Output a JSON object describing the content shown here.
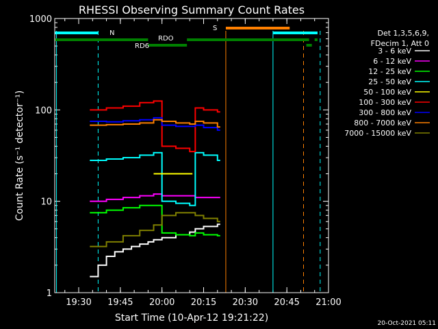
{
  "chart_data": {
    "type": "line",
    "title": "RHESSI Observing Summary Count Rates",
    "xlabel": "Start Time (10-Apr-12 19:21:22)",
    "ylabel": "Count Rate (s⁻¹ detector⁻¹)",
    "yscale": "log",
    "ylim": [
      1,
      1000
    ],
    "xlim": [
      "19:21:22",
      "21:00:00"
    ],
    "x_ticks": [
      "19:30",
      "19:45",
      "20:00",
      "20:15",
      "20:30",
      "20:45",
      "21:00"
    ],
    "y_ticks": [
      "1",
      "10",
      "100",
      "1000"
    ],
    "grid": false,
    "legend_position": "right",
    "legend_header": [
      "Det 1,3,5,6,9,",
      "FDecim 1, Att 0"
    ],
    "series": [
      {
        "name": "3 - 6 keV",
        "color": "#ffffff",
        "x": [
          "19:34",
          "19:37",
          "19:40",
          "19:43",
          "19:46",
          "19:49",
          "19:52",
          "19:55",
          "19:57",
          "20:00",
          "20:05",
          "20:10",
          "20:12",
          "20:15",
          "20:20"
        ],
        "values": [
          1.5,
          2,
          2.5,
          2.8,
          3,
          3.2,
          3.4,
          3.6,
          3.8,
          4.0,
          4.3,
          4.6,
          5.0,
          5.3,
          5.6
        ]
      },
      {
        "name": "6 - 12 keV",
        "color": "#ff00ff",
        "x": [
          "19:34",
          "19:40",
          "19:46",
          "19:52",
          "19:57",
          "20:00",
          "20:05",
          "20:10",
          "20:12",
          "20:15",
          "20:20"
        ],
        "values": [
          10,
          10.5,
          11,
          11.5,
          12,
          11.5,
          11.5,
          11.5,
          11,
          11,
          11
        ]
      },
      {
        "name": "12 - 25 keV",
        "color": "#00ff00",
        "x": [
          "19:34",
          "19:40",
          "19:46",
          "19:52",
          "19:57",
          "20:00",
          "20:05",
          "20:10",
          "20:12",
          "20:15",
          "20:20"
        ],
        "values": [
          7.5,
          8,
          8.5,
          9,
          9,
          4.5,
          4.3,
          4.2,
          4.5,
          4.3,
          4.2
        ]
      },
      {
        "name": "25 - 50 keV",
        "color": "#00ffff",
        "x": [
          "19:34",
          "19:40",
          "19:46",
          "19:52",
          "19:57",
          "20:00",
          "20:05",
          "20:10",
          "20:12",
          "20:15",
          "20:20"
        ],
        "values": [
          28,
          29,
          30,
          32,
          34,
          10,
          9.5,
          9,
          34,
          32,
          28
        ]
      },
      {
        "name": "50 - 100 keV",
        "color": "#ffff00",
        "x": [
          "19:57",
          "20:00",
          "20:05",
          "20:10"
        ],
        "values": [
          20,
          20,
          20,
          20
        ]
      },
      {
        "name": "100 - 300 keV",
        "color": "#ff0000",
        "x": [
          "19:34",
          "19:40",
          "19:46",
          "19:52",
          "19:57",
          "20:00",
          "20:05",
          "20:10",
          "20:12",
          "20:15",
          "20:20"
        ],
        "values": [
          100,
          105,
          110,
          120,
          125,
          40,
          38,
          35,
          105,
          100,
          95
        ]
      },
      {
        "name": "300 - 800 keV",
        "color": "#0000ff",
        "x": [
          "19:34",
          "19:40",
          "19:46",
          "19:52",
          "19:57",
          "20:00",
          "20:05",
          "20:10",
          "20:12",
          "20:15",
          "20:20"
        ],
        "values": [
          75,
          74,
          76,
          78,
          82,
          68,
          66,
          66,
          68,
          64,
          60
        ]
      },
      {
        "name": "800 - 7000 keV",
        "color": "#ff8000",
        "x": [
          "19:34",
          "19:40",
          "19:46",
          "19:52",
          "19:57",
          "20:00",
          "20:05",
          "20:10",
          "20:12",
          "20:15",
          "20:20"
        ],
        "values": [
          68,
          69,
          70,
          72,
          78,
          75,
          72,
          70,
          75,
          72,
          65
        ]
      },
      {
        "name": "7000 - 15000 keV",
        "color": "#808000",
        "x": [
          "19:34",
          "19:40",
          "19:46",
          "19:52",
          "19:57",
          "20:00",
          "20:05",
          "20:10",
          "20:12",
          "20:15",
          "20:20"
        ],
        "values": [
          3.2,
          3.6,
          4.2,
          4.8,
          5.5,
          7,
          7.5,
          7.5,
          7,
          6.5,
          6
        ]
      }
    ],
    "flag_bars": [
      {
        "label": "N",
        "color": "#00ffff",
        "segments": [
          [
            "19:21",
            "19:37"
          ],
          [
            "20:40",
            "20:59"
          ]
        ]
      },
      {
        "label": "S",
        "color": "#ff8000",
        "segments": [
          [
            "20:23",
            "20:46"
          ]
        ]
      },
      {
        "label": "RDO",
        "color": "#008000",
        "segments": [
          [
            "19:21",
            "19:55"
          ],
          [
            "20:09",
            "20:53"
          ],
          [
            "20:55",
            "20:59"
          ]
        ]
      },
      {
        "label": "RD6",
        "color": "#008000",
        "segments": [
          [
            "19:55",
            "20:09"
          ],
          [
            "20:52",
            "20:54"
          ]
        ]
      }
    ],
    "vertical_markers": [
      {
        "x": "19:22",
        "color": "#00ffff",
        "style": "solid"
      },
      {
        "x": "19:37",
        "color": "#00ffff",
        "style": "dashed"
      },
      {
        "x": "20:23",
        "color": "#ff8000",
        "style": "solid"
      },
      {
        "x": "20:40",
        "color": "#00ffff",
        "style": "solid"
      },
      {
        "x": "20:51",
        "color": "#ff8000",
        "style": "dashed"
      },
      {
        "x": "20:57",
        "color": "#00ffff",
        "style": "dashed"
      }
    ]
  },
  "footer": {
    "timestamp": "20-Oct-2021 05:11"
  }
}
